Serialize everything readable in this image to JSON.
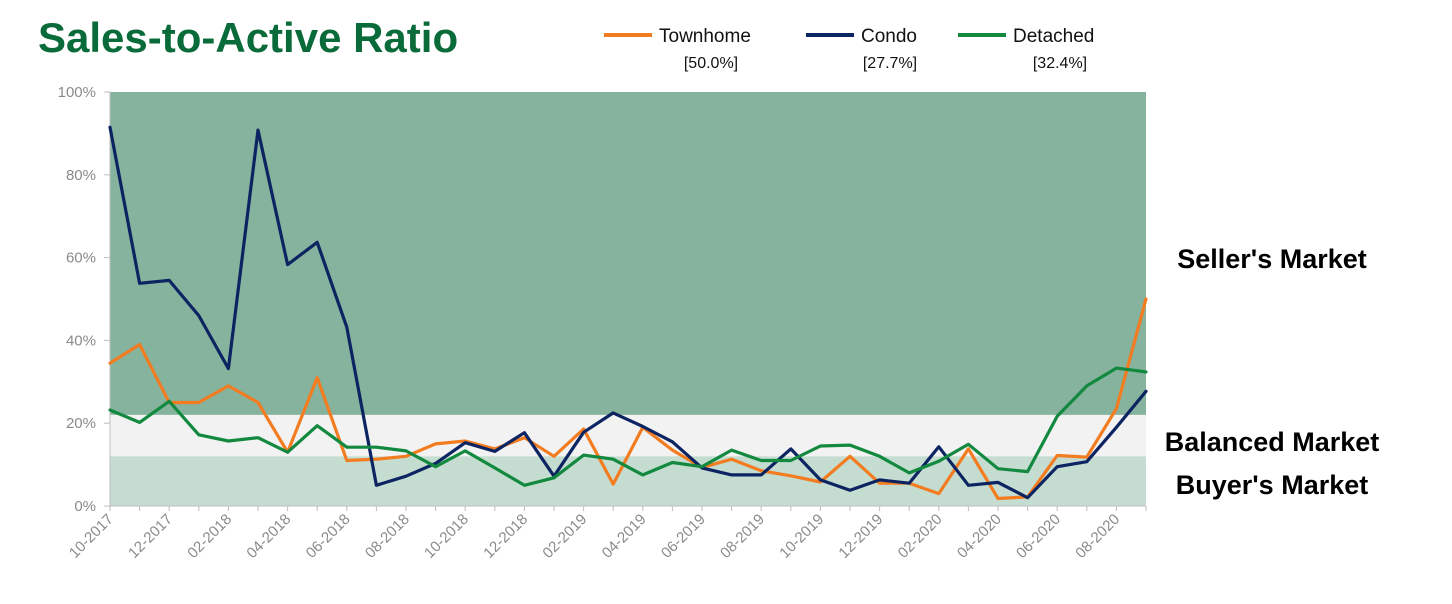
{
  "chart_data": {
    "type": "line",
    "title": "Sales-to-Active Ratio",
    "xlabel": "",
    "ylabel": "",
    "ylim": [
      0,
      100
    ],
    "y_ticks": [
      "0%",
      "20%",
      "40%",
      "60%",
      "80%",
      "100%"
    ],
    "x": [
      "10-2017",
      "11-2017",
      "12-2017",
      "01-2018",
      "02-2018",
      "03-2018",
      "04-2018",
      "05-2018",
      "06-2018",
      "07-2018",
      "08-2018",
      "09-2018",
      "10-2018",
      "11-2018",
      "12-2018",
      "01-2019",
      "02-2019",
      "03-2019",
      "04-2019",
      "05-2019",
      "06-2019",
      "07-2019",
      "08-2019",
      "09-2019",
      "10-2019",
      "11-2019",
      "12-2019",
      "01-2020",
      "02-2020",
      "03-2020",
      "04-2020",
      "05-2020",
      "06-2020",
      "07-2020",
      "08-2020",
      "09-2020"
    ],
    "x_tick_labels": [
      "10-2017",
      "12-2017",
      "02-2018",
      "04-2018",
      "06-2018",
      "08-2018",
      "10-2018",
      "12-2018",
      "02-2019",
      "04-2019",
      "06-2019",
      "08-2019",
      "10-2019",
      "12-2019",
      "02-2020",
      "04-2020",
      "06-2020",
      "08-2020"
    ],
    "legend_position": "top",
    "series": [
      {
        "name": "Townhome",
        "current": "[50.0%]",
        "color": "#f47c20",
        "values": [
          34.5,
          39,
          25,
          25,
          29,
          25,
          13,
          31,
          11,
          11.3,
          12,
          15,
          15.7,
          13.8,
          16.5,
          12,
          18.6,
          5.3,
          19,
          13.5,
          9.3,
          11.3,
          8.5,
          7.3,
          5.8,
          12,
          5.5,
          5.5,
          3,
          13.8,
          1.8,
          2.2,
          12.2,
          11.8,
          23.5,
          50
        ]
      },
      {
        "name": "Condo",
        "current": "[27.7%]",
        "color": "#0c2461",
        "values": [
          91.5,
          53.8,
          54.5,
          46,
          33.2,
          90.8,
          58.3,
          63.7,
          43.2,
          5,
          7.2,
          10.3,
          15.3,
          13.2,
          17.7,
          7.2,
          17.8,
          22.5,
          19.2,
          15.5,
          9.2,
          7.5,
          7.5,
          13.8,
          6.3,
          3.8,
          6.3,
          5.5,
          14.3,
          5,
          5.7,
          2,
          9.5,
          10.7,
          19,
          27.7
        ]
      },
      {
        "name": "Detached",
        "current": "[32.4%]",
        "color": "#12893f",
        "values": [
          23.2,
          20.2,
          25.3,
          17.2,
          15.7,
          16.5,
          13,
          19.4,
          14.2,
          14.2,
          13.3,
          9.5,
          13.3,
          9.2,
          5,
          6.8,
          12.3,
          11.3,
          7.5,
          10.5,
          9.5,
          13.5,
          11,
          11,
          14.5,
          14.7,
          12,
          8,
          10.8,
          14.9,
          9,
          8.3,
          21.7,
          29,
          33.3,
          32.4
        ]
      }
    ],
    "zones": [
      {
        "label": "Seller's Market",
        "from": 22,
        "to": 100,
        "color": "#85b39d"
      },
      {
        "label": "Balanced Market",
        "from": 12,
        "to": 22,
        "color": "#f2f2f2"
      },
      {
        "label": "Buyer's Market",
        "from": 0,
        "to": 12,
        "color": "#c5ddd0"
      }
    ],
    "title_color": "#0a6b3a",
    "grid": false
  }
}
